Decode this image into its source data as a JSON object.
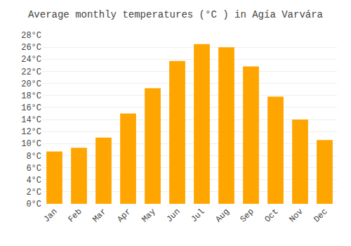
{
  "chart_data": {
    "type": "bar",
    "title": "Average monthly temperatures (°C ) in Agía Varvára",
    "categories": [
      "Jan",
      "Feb",
      "Mar",
      "Apr",
      "May",
      "Jun",
      "Jul",
      "Aug",
      "Sep",
      "Oct",
      "Nov",
      "Dec"
    ],
    "values": [
      8.7,
      9.3,
      11.0,
      15.0,
      19.2,
      23.7,
      26.5,
      26.0,
      22.8,
      17.8,
      14.0,
      10.6
    ],
    "color": "#FFA500",
    "ylim": [
      0,
      28
    ],
    "yticks": [
      {
        "value": 0,
        "label": "0°C"
      },
      {
        "value": 2,
        "label": "2°C"
      },
      {
        "value": 4,
        "label": "4°C"
      },
      {
        "value": 6,
        "label": "6°C"
      },
      {
        "value": 8,
        "label": "8°C"
      },
      {
        "value": 10,
        "label": "10°C"
      },
      {
        "value": 12,
        "label": "12°C"
      },
      {
        "value": 14,
        "label": "14°C"
      },
      {
        "value": 16,
        "label": "16°C"
      },
      {
        "value": 18,
        "label": "18°C"
      },
      {
        "value": 20,
        "label": "20°C"
      },
      {
        "value": 22,
        "label": "22°C"
      },
      {
        "value": 24,
        "label": "24°C"
      },
      {
        "value": 26,
        "label": "26°C"
      },
      {
        "value": 28,
        "label": "28°C"
      }
    ],
    "grid": true
  }
}
